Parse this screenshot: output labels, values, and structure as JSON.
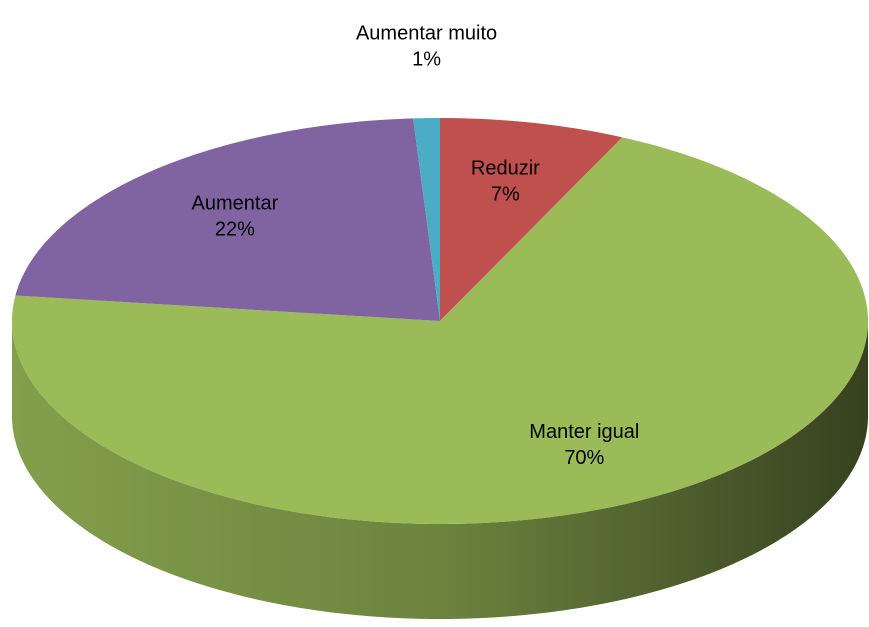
{
  "chart_data": {
    "type": "pie3d",
    "categories": [
      "Reduzir",
      "Manter igual",
      "Aumentar",
      "Aumentar muito"
    ],
    "values": [
      7,
      70,
      22,
      1
    ],
    "value_labels": [
      "7%",
      "70%",
      "22%",
      "1%"
    ],
    "colors": [
      "#c0504d",
      "#9bbb59",
      "#8064a2",
      "#4bacc6"
    ]
  }
}
